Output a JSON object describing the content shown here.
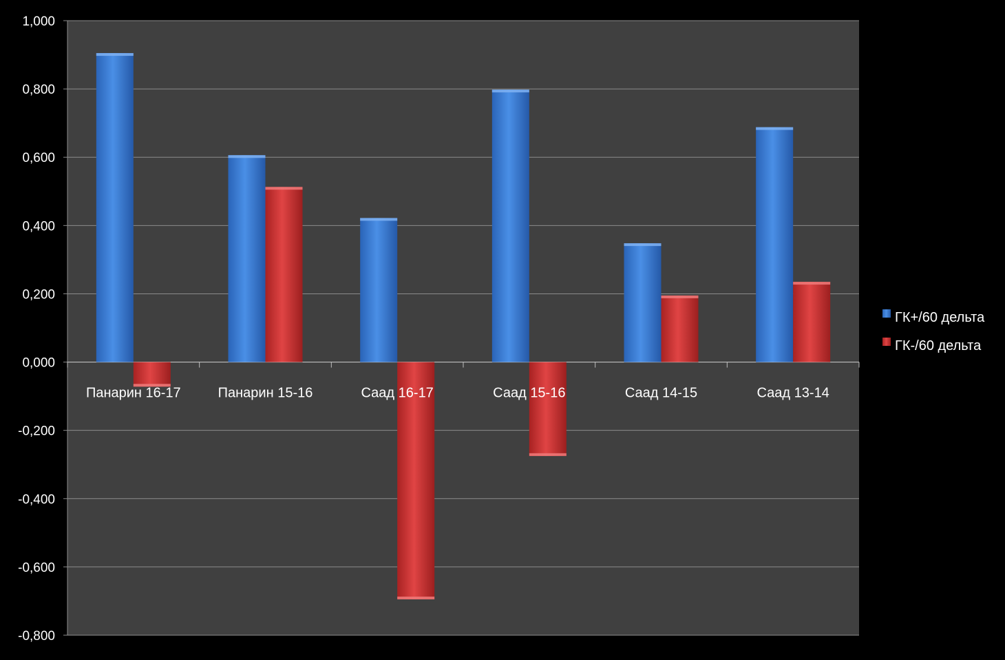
{
  "chart_data": {
    "type": "bar",
    "title": "",
    "xlabel": "",
    "ylabel": "",
    "categories": [
      "Панарин 16-17",
      "Панарин 15-16",
      "Саад 16-17",
      "Саад 15-16",
      "Саад 14-15",
      "Саад 13-14"
    ],
    "series": [
      {
        "name": "ГК+/60 дельта",
        "color": "#3c7fd6",
        "values": [
          0.905,
          0.606,
          0.422,
          0.798,
          0.348,
          0.688
        ]
      },
      {
        "name": "ГК-/60 дельта",
        "color": "#c83232",
        "values": [
          -0.072,
          0.513,
          -0.695,
          -0.275,
          0.195,
          0.235
        ]
      }
    ],
    "ylim": [
      -0.8,
      1.0
    ],
    "yticks": [
      "1,000",
      "0,800",
      "0,600",
      "0,400",
      "0,200",
      "0,000",
      "-0,200",
      "-0,400",
      "-0,600",
      "-0,800"
    ],
    "ytick_values": [
      1.0,
      0.8,
      0.6,
      0.4,
      0.2,
      0.0,
      -0.2,
      -0.4,
      -0.6,
      -0.8
    ],
    "grid": true,
    "legend_position": "right",
    "colors": {
      "background": "#000000",
      "plot_area": "#404040",
      "grid": "#8c8c8c"
    }
  }
}
